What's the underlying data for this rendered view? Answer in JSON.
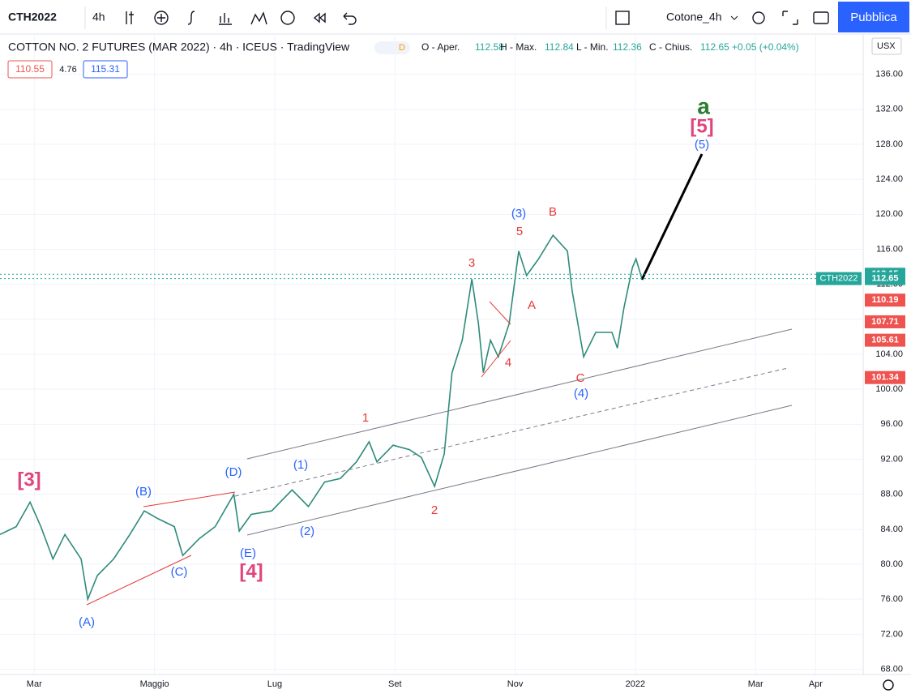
{
  "toolbar": {
    "symbol": "CTH2022",
    "interval": "4h",
    "layout": "Cotone_4h",
    "publish": "Pubblica"
  },
  "legend": {
    "title": "COTTON NO. 2 FUTURES (MAR 2022) · 4h · ICEUS · TradingView",
    "flag": "D",
    "o_label": "O - Aper.",
    "o": "112.58",
    "h_label": "H - Max.",
    "h": "112.84",
    "l_label": "L - Min.",
    "l": "112.36",
    "c_label": "C - Chius.",
    "c": "112.65",
    "change": "+0.05 (+0.04%)",
    "bid": "110.55",
    "spread": "4.76",
    "ask": "115.31"
  },
  "currency": "USX",
  "chart_data": {
    "type": "line",
    "x": [
      1.43,
      1.7,
      1.93,
      2.11,
      2.31,
      2.51,
      2.78,
      2.89,
      3.05,
      3.32,
      3.59,
      3.83,
      4.06,
      4.33,
      4.47,
      4.74,
      5.01,
      5.32,
      5.41,
      5.61,
      5.95,
      6.29,
      6.56,
      6.83,
      7.09,
      7.36,
      7.57,
      7.7,
      7.97,
      8.24,
      8.44,
      8.66,
      8.82,
      8.95,
      9.12,
      9.28,
      9.39,
      9.47,
      9.59,
      9.72,
      9.9,
      10.06,
      10.19,
      10.39,
      10.63,
      10.87,
      10.95,
      11.07,
      11.14,
      11.34,
      11.61,
      11.7,
      11.81,
      11.95,
      12.01,
      12.11
    ],
    "series": [
      {
        "name": "CTH2022",
        "color": "#2e8b7a",
        "values": [
          83.4,
          84.3,
          87.1,
          84.3,
          80.6,
          83.4,
          80.6,
          76.0,
          78.7,
          80.6,
          83.4,
          86.1,
          85.2,
          84.3,
          81.0,
          82.9,
          84.3,
          88.0,
          83.8,
          85.7,
          86.1,
          88.5,
          86.6,
          89.4,
          89.8,
          91.7,
          94.0,
          91.7,
          93.6,
          93.1,
          92.2,
          88.9,
          92.6,
          101.9,
          105.6,
          112.6,
          107.5,
          101.9,
          105.6,
          103.7,
          107.5,
          115.8,
          113.0,
          114.9,
          117.6,
          115.8,
          111.2,
          106.5,
          103.7,
          106.5,
          106.5,
          104.7,
          109.3,
          113.9,
          114.9,
          112.6
        ]
      }
    ],
    "xlim": [
      1.43,
      15.79
    ],
    "xticks": [
      {
        "value": 2,
        "label": "Mar"
      },
      {
        "value": 4,
        "label": "Maggio"
      },
      {
        "value": 6,
        "label": "Lug"
      },
      {
        "value": 8,
        "label": "Set"
      },
      {
        "value": 10,
        "label": "Nov"
      },
      {
        "value": 12,
        "label": "2022"
      },
      {
        "value": 14,
        "label": "Mar"
      },
      {
        "value": 15,
        "label": "Apr"
      }
    ],
    "ylim": [
      67.4,
      140.6
    ],
    "yticks": [
      {
        "value": 68,
        "label": "68.00"
      },
      {
        "value": 72,
        "label": "72.00"
      },
      {
        "value": 76,
        "label": "76.00"
      },
      {
        "value": 80,
        "label": "80.00"
      },
      {
        "value": 84,
        "label": "84.00"
      },
      {
        "value": 88,
        "label": "88.00"
      },
      {
        "value": 92,
        "label": "92.00"
      },
      {
        "value": 96,
        "label": "96.00"
      },
      {
        "value": 100,
        "label": "100.00"
      },
      {
        "value": 104,
        "label": "104.00"
      },
      {
        "value": 108,
        "label": "108.00"
      },
      {
        "value": 112,
        "label": "112.00"
      },
      {
        "value": 116,
        "label": "116.00"
      },
      {
        "value": 120,
        "label": "120.00"
      },
      {
        "value": 124,
        "label": "124.00"
      },
      {
        "value": 128,
        "label": "128.00"
      },
      {
        "value": 132,
        "label": "132.00"
      },
      {
        "value": 136,
        "label": "136.00"
      }
    ],
    "grid": true,
    "price_tags": [
      {
        "value": 113.15,
        "color": "#26a69a"
      },
      {
        "name": "CTH2022",
        "value": 112.65,
        "color": "#26a69a"
      },
      {
        "value": 110.19,
        "color": "#ef5350"
      },
      {
        "value": 107.71,
        "color": "#ef5350"
      },
      {
        "value": 105.61,
        "color": "#ef5350"
      },
      {
        "value": 101.34,
        "color": "#ef5350"
      }
    ],
    "annotations": [
      "[3]",
      "(A)",
      "(B)",
      "(C)",
      "(D)",
      "(E)",
      "[4]",
      "(1)",
      "(2)",
      "1",
      "2",
      "3",
      "4",
      "5",
      "(3)",
      "B",
      "A",
      "C",
      "(4)",
      "a",
      "[5]",
      "(5)"
    ]
  }
}
